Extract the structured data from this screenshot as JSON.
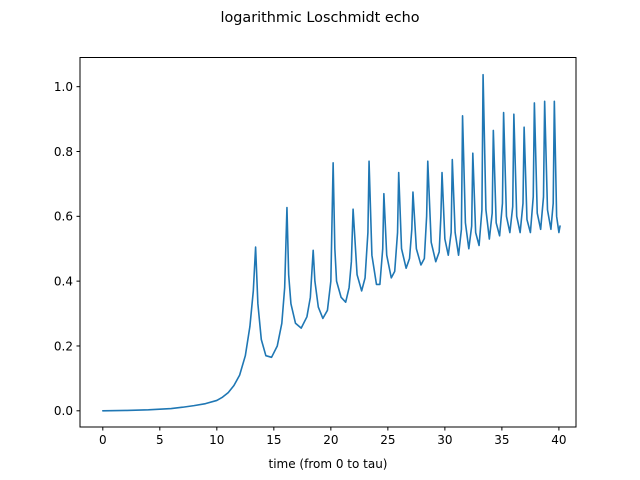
{
  "chart_data": {
    "type": "line",
    "title": "logarithmic Loschmidt echo",
    "xlabel": "time (from 0 to tau)",
    "ylabel": "",
    "xlim": [
      -2,
      41.5
    ],
    "ylim": [
      -0.05,
      1.09
    ],
    "xticks": [
      0,
      5,
      10,
      15,
      20,
      25,
      30,
      35,
      40
    ],
    "xtick_labels": [
      "0",
      "5",
      "10",
      "15",
      "20",
      "25",
      "30",
      "35",
      "40"
    ],
    "yticks": [
      0.0,
      0.2,
      0.4,
      0.6,
      0.8,
      1.0
    ],
    "ytick_labels": [
      "0.0",
      "0.2",
      "0.4",
      "0.6",
      "0.8",
      "1.0"
    ],
    "grid": false,
    "legend": "none",
    "color": "#1f77b4",
    "series": [
      {
        "x": [
          0,
          2,
          4,
          6,
          7,
          8,
          9,
          10,
          10.5,
          11,
          11.5,
          12,
          12.5,
          12.9,
          13.2,
          13.4,
          13.6,
          13.9,
          14.3,
          14.8,
          15.3,
          15.7,
          15.95,
          16.15,
          16.3,
          16.5,
          16.9,
          17.4,
          17.9,
          18.2,
          18.45,
          18.6,
          18.9,
          19.3,
          19.7,
          20.0,
          20.2,
          20.35,
          20.5,
          20.9,
          21.3,
          21.6,
          21.8,
          21.95,
          22.3,
          22.7,
          23.0,
          23.25,
          23.35,
          23.6,
          24.0,
          24.3,
          24.55,
          24.65,
          24.9,
          25.3,
          25.6,
          25.85,
          25.95,
          26.2,
          26.6,
          26.9,
          27.1,
          27.2,
          27.5,
          27.9,
          28.2,
          28.4,
          28.5,
          28.8,
          29.2,
          29.5,
          29.65,
          29.75,
          30.0,
          30.3,
          30.55,
          30.65,
          30.9,
          31.2,
          31.45,
          31.55,
          31.8,
          32.1,
          32.35,
          32.45,
          32.7,
          33.0,
          33.25,
          33.35,
          33.6,
          33.9,
          34.15,
          34.25,
          34.5,
          34.8,
          35.05,
          35.15,
          35.4,
          35.7,
          35.95,
          36.05,
          36.3,
          36.6,
          36.85,
          36.95,
          37.2,
          37.5,
          37.75,
          37.85,
          38.1,
          38.4,
          38.65,
          38.75,
          39.0,
          39.3,
          39.5,
          39.6,
          39.8,
          40.0,
          40.1
        ],
        "y": [
          0.0,
          0.001,
          0.003,
          0.007,
          0.011,
          0.016,
          0.022,
          0.032,
          0.042,
          0.056,
          0.078,
          0.11,
          0.17,
          0.26,
          0.37,
          0.505,
          0.33,
          0.22,
          0.17,
          0.165,
          0.2,
          0.27,
          0.38,
          0.627,
          0.42,
          0.33,
          0.27,
          0.255,
          0.29,
          0.35,
          0.495,
          0.4,
          0.32,
          0.285,
          0.31,
          0.4,
          0.765,
          0.5,
          0.4,
          0.35,
          0.335,
          0.38,
          0.46,
          0.622,
          0.42,
          0.37,
          0.41,
          0.55,
          0.77,
          0.48,
          0.39,
          0.39,
          0.5,
          0.67,
          0.48,
          0.41,
          0.43,
          0.55,
          0.735,
          0.5,
          0.44,
          0.47,
          0.56,
          0.675,
          0.5,
          0.45,
          0.47,
          0.6,
          0.77,
          0.52,
          0.46,
          0.49,
          0.6,
          0.735,
          0.53,
          0.48,
          0.55,
          0.775,
          0.55,
          0.48,
          0.56,
          0.91,
          0.58,
          0.5,
          0.57,
          0.795,
          0.55,
          0.51,
          0.62,
          1.037,
          0.62,
          0.53,
          0.61,
          0.865,
          0.58,
          0.54,
          0.64,
          0.92,
          0.6,
          0.55,
          0.63,
          0.915,
          0.6,
          0.55,
          0.64,
          0.875,
          0.59,
          0.55,
          0.66,
          0.95,
          0.61,
          0.56,
          0.66,
          0.955,
          0.62,
          0.56,
          0.64,
          0.955,
          0.6,
          0.55,
          0.57
        ]
      }
    ]
  }
}
